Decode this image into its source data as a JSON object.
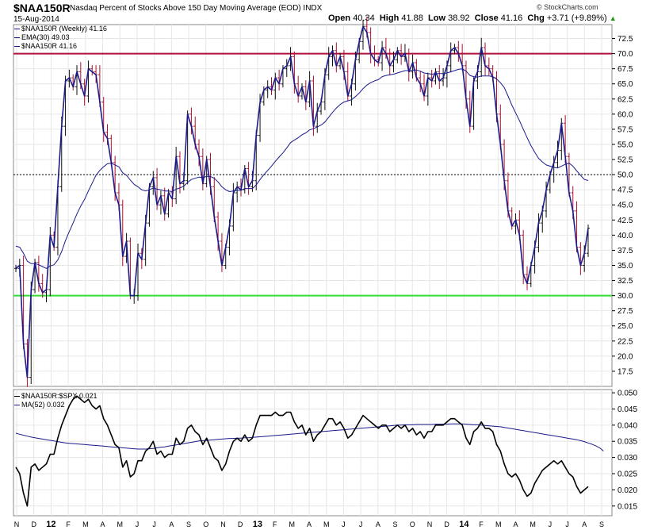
{
  "header": {
    "symbol": "$NAA150R",
    "title": "Nasdaq Percent of Stocks Above 150 Day Moving Average (EOD) INDX",
    "date": "15-Aug-2014",
    "open_label": "Open",
    "open": "40.34",
    "high_label": "High",
    "high": "41.88",
    "low_label": "Low",
    "low": "38.92",
    "close_label": "Close",
    "close": "41.16",
    "chg_label": "Chg",
    "chg": "+3.71 (+9.89%)",
    "chg_up_glyph": "▲",
    "copyright": "© StockCharts.com"
  },
  "legend_main": [
    {
      "text": "$NAA150R (Weekly) 41.16",
      "color": "#1a1a8c",
      "glyph": "candles"
    },
    {
      "text": "EMA(30) 49.03",
      "color": "#1a1a8c",
      "glyph": "line"
    },
    {
      "text": "$NAA150R 41.16",
      "color": "#1a1a8c",
      "glyph": "line"
    }
  ],
  "legend_lower": [
    {
      "text": "$NAA150R:$SPX 0.021",
      "color": "#000000",
      "glyph": "line"
    },
    {
      "text": "MA(52) 0.032",
      "color": "#1a1a8c",
      "glyph": "line"
    }
  ],
  "colors": {
    "price": "#1a1a8c",
    "ema": "#1a1a8c",
    "up_bar": "#111111",
    "down_bar": "#b01030",
    "upper_ref_line": "#b0103c",
    "lower_ref_line": "#33dd33",
    "ratio": "#000000",
    "ma": "#1a1a8c"
  },
  "chart_data": [
    {
      "type": "line",
      "panel": "main",
      "x_ticks": [
        "N",
        "D",
        "12",
        "F",
        "M",
        "A",
        "M",
        "J",
        "J",
        "A",
        "S",
        "O",
        "N",
        "D",
        "13",
        "F",
        "M",
        "A",
        "M",
        "J",
        "J",
        "A",
        "S",
        "O",
        "N",
        "D",
        "14",
        "F",
        "M",
        "A",
        "M",
        "J",
        "J",
        "A",
        "S"
      ],
      "y_ticks": [
        17.5,
        20.0,
        22.5,
        25.0,
        27.5,
        30.0,
        32.5,
        35.0,
        37.5,
        40.0,
        42.5,
        45.0,
        47.5,
        50.0,
        52.5,
        55.0,
        57.5,
        60.0,
        62.5,
        65.0,
        67.5,
        70.0,
        72.5
      ],
      "ylim": [
        15.0,
        74.8
      ],
      "reference_lines": [
        {
          "value": 70.0,
          "style": "solid",
          "color": "upper_ref_line"
        },
        {
          "value": 50.0,
          "style": "dotted",
          "color": "black"
        },
        {
          "value": 30.0,
          "style": "solid",
          "color": "lower_ref_line"
        }
      ],
      "series": [
        {
          "name": "$NAA150R",
          "values": [
            34.5,
            35.0,
            22.0,
            16.5,
            31.0,
            35.5,
            32.0,
            30.5,
            31.0,
            40.0,
            38.0,
            48.0,
            58.0,
            65.5,
            66.0,
            64.5,
            67.0,
            65.0,
            63.0,
            67.5,
            67.0,
            66.5,
            62.0,
            57.0,
            56.0,
            52.0,
            47.0,
            45.0,
            36.5,
            39.0,
            30.0,
            30.0,
            37.0,
            36.0,
            42.0,
            48.0,
            49.5,
            45.0,
            46.5,
            43.5,
            47.0,
            46.0,
            53.0,
            48.5,
            49.0,
            60.0,
            58.0,
            55.0,
            53.0,
            48.5,
            52.5,
            48.0,
            43.0,
            39.0,
            35.0,
            38.0,
            41.5,
            47.0,
            48.0,
            47.5,
            51.0,
            48.0,
            49.0,
            56.5,
            62.0,
            64.0,
            64.5,
            64.0,
            66.0,
            65.0,
            67.5,
            68.0,
            69.5,
            65.0,
            63.0,
            64.5,
            62.0,
            65.5,
            58.0,
            60.5,
            62.0,
            66.5,
            69.5,
            70.5,
            68.0,
            69.5,
            67.0,
            63.0,
            65.0,
            69.0,
            72.0,
            74.5,
            73.5,
            70.0,
            69.0,
            68.5,
            71.0,
            70.0,
            68.0,
            69.0,
            70.5,
            69.5,
            70.0,
            67.0,
            68.5,
            66.0,
            65.0,
            63.0,
            66.0,
            65.5,
            67.0,
            65.5,
            66.0,
            68.0,
            70.5,
            71.0,
            70.0,
            68.0,
            62.5,
            58.0,
            65.5,
            67.0,
            71.0,
            68.0,
            67.5,
            66.0,
            60.0,
            55.0,
            49.0,
            44.0,
            41.5,
            42.5,
            40.0,
            33.5,
            32.0,
            35.0,
            38.0,
            42.0,
            44.0,
            47.5,
            50.0,
            52.0,
            54.0,
            58.5,
            53.0,
            47.0,
            44.0,
            38.0,
            35.0,
            37.0,
            41.16
          ]
        },
        {
          "name": "EMA(30)",
          "values": [
            38.2,
            38.0,
            37.0,
            35.7,
            35.3,
            35.3,
            35.1,
            34.8,
            34.5,
            34.9,
            35.1,
            35.9,
            37.3,
            39.1,
            40.6,
            42.0,
            43.5,
            44.8,
            45.9,
            47.3,
            48.6,
            49.9,
            50.7,
            51.3,
            51.8,
            51.9,
            51.6,
            51.3,
            50.3,
            49.9,
            49.1,
            48.4,
            48.0,
            47.5,
            47.3,
            47.5,
            47.8,
            47.6,
            47.5,
            47.3,
            47.3,
            47.2,
            47.6,
            47.8,
            48.1,
            48.7,
            49.2,
            49.4,
            49.6,
            49.5,
            49.7,
            49.7,
            49.4,
            48.8,
            48.0,
            47.5,
            47.2,
            47.3,
            47.4,
            47.4,
            47.7,
            47.7,
            47.7,
            48.3,
            49.2,
            50.0,
            50.7,
            51.4,
            52.2,
            52.9,
            53.6,
            54.4,
            55.3,
            55.7,
            56.1,
            56.6,
            56.9,
            57.4,
            57.6,
            57.9,
            58.2,
            58.7,
            59.5,
            60.3,
            61.0,
            61.6,
            62.0,
            62.2,
            62.4,
            62.9,
            63.5,
            64.2,
            64.8,
            65.2,
            65.5,
            65.7,
            66.2,
            66.4,
            66.5,
            66.6,
            66.8,
            67.0,
            67.2,
            67.2,
            67.3,
            67.3,
            67.1,
            66.8,
            66.7,
            66.6,
            66.7,
            66.7,
            66.7,
            66.8,
            67.0,
            67.2,
            67.4,
            67.5,
            67.1,
            66.4,
            66.2,
            66.1,
            66.3,
            66.3,
            66.3,
            66.2,
            65.8,
            65.2,
            64.4,
            63.0,
            61.5,
            60.2,
            58.9,
            57.5,
            56.1,
            54.8,
            53.7,
            52.7,
            52.1,
            51.6,
            51.4,
            51.2,
            51.1,
            51.4,
            51.7,
            51.9,
            51.4,
            50.6,
            49.9,
            49.2,
            49.03
          ]
        }
      ],
      "bars_note": "weekly OHLC bars derived from series values"
    },
    {
      "type": "line",
      "panel": "lower",
      "x_ticks": [
        "N",
        "D",
        "12",
        "F",
        "M",
        "A",
        "M",
        "J",
        "J",
        "A",
        "S",
        "O",
        "N",
        "D",
        "13",
        "F",
        "M",
        "A",
        "M",
        "J",
        "J",
        "A",
        "S",
        "O",
        "N",
        "D",
        "14",
        "F",
        "M",
        "A",
        "M",
        "J",
        "J",
        "A",
        "S"
      ],
      "y_ticks": [
        0.015,
        0.02,
        0.025,
        0.03,
        0.035,
        0.04,
        0.045,
        0.05
      ],
      "ylim": [
        0.012,
        0.051
      ],
      "series": [
        {
          "name": "$NAA150R:$SPX",
          "values": [
            0.027,
            0.025,
            0.019,
            0.015,
            0.027,
            0.028,
            0.026,
            0.027,
            0.028,
            0.031,
            0.031,
            0.036,
            0.04,
            0.043,
            0.046,
            0.048,
            0.049,
            0.048,
            0.047,
            0.048,
            0.046,
            0.045,
            0.046,
            0.042,
            0.04,
            0.037,
            0.034,
            0.033,
            0.027,
            0.029,
            0.024,
            0.025,
            0.029,
            0.029,
            0.032,
            0.033,
            0.035,
            0.031,
            0.032,
            0.03,
            0.031,
            0.031,
            0.036,
            0.034,
            0.035,
            0.039,
            0.04,
            0.038,
            0.037,
            0.034,
            0.036,
            0.033,
            0.03,
            0.029,
            0.026,
            0.028,
            0.032,
            0.035,
            0.036,
            0.035,
            0.037,
            0.035,
            0.036,
            0.04,
            0.043,
            0.043,
            0.043,
            0.043,
            0.044,
            0.043,
            0.043,
            0.044,
            0.044,
            0.041,
            0.039,
            0.04,
            0.037,
            0.039,
            0.035,
            0.037,
            0.038,
            0.04,
            0.042,
            0.042,
            0.04,
            0.041,
            0.039,
            0.036,
            0.037,
            0.039,
            0.041,
            0.043,
            0.042,
            0.041,
            0.04,
            0.039,
            0.04,
            0.04,
            0.038,
            0.039,
            0.04,
            0.039,
            0.04,
            0.038,
            0.039,
            0.037,
            0.038,
            0.036,
            0.038,
            0.038,
            0.04,
            0.04,
            0.04,
            0.041,
            0.042,
            0.042,
            0.041,
            0.04,
            0.036,
            0.034,
            0.038,
            0.039,
            0.041,
            0.039,
            0.039,
            0.038,
            0.034,
            0.032,
            0.028,
            0.025,
            0.024,
            0.025,
            0.023,
            0.02,
            0.018,
            0.019,
            0.022,
            0.024,
            0.026,
            0.027,
            0.028,
            0.029,
            0.028,
            0.029,
            0.027,
            0.025,
            0.024,
            0.021,
            0.019,
            0.02,
            0.021
          ]
        },
        {
          "name": "MA(52)",
          "values": [
            0.0375,
            0.0372,
            0.0369,
            0.0366,
            0.0363,
            0.0361,
            0.0359,
            0.0357,
            0.0355,
            0.0353,
            0.0351,
            0.0349,
            0.0347,
            0.0345,
            0.0344,
            0.0343,
            0.0342,
            0.0341,
            0.034,
            0.0339,
            0.0338,
            0.0337,
            0.0336,
            0.0335,
            0.0334,
            0.0333,
            0.0332,
            0.0331,
            0.033,
            0.0329,
            0.0328,
            0.0327,
            0.0326,
            0.0326,
            0.0326,
            0.0327,
            0.0328,
            0.033,
            0.0332,
            0.0333,
            0.0335,
            0.0337,
            0.0339,
            0.0341,
            0.0343,
            0.0345,
            0.0347,
            0.0349,
            0.0351,
            0.0352,
            0.0353,
            0.0354,
            0.0355,
            0.0356,
            0.0357,
            0.0358,
            0.0359,
            0.0359,
            0.036,
            0.036,
            0.0361,
            0.0361,
            0.0362,
            0.0363,
            0.0364,
            0.0365,
            0.0366,
            0.0367,
            0.0368,
            0.0369,
            0.037,
            0.0371,
            0.0372,
            0.0373,
            0.0374,
            0.0375,
            0.0376,
            0.0377,
            0.0378,
            0.0379,
            0.038,
            0.0381,
            0.0382,
            0.0383,
            0.0384,
            0.0385,
            0.0386,
            0.0387,
            0.0388,
            0.0389,
            0.039,
            0.0391,
            0.0392,
            0.0393,
            0.0394,
            0.0395,
            0.0396,
            0.0397,
            0.0398,
            0.0399,
            0.04,
            0.04,
            0.0401,
            0.0401,
            0.0401,
            0.0402,
            0.0402,
            0.0402,
            0.0402,
            0.0402,
            0.0403,
            0.0403,
            0.0403,
            0.0403,
            0.0404,
            0.0404,
            0.0404,
            0.0404,
            0.0403,
            0.0402,
            0.0401,
            0.0401,
            0.04,
            0.0399,
            0.0398,
            0.0397,
            0.0396,
            0.0395,
            0.0393,
            0.0391,
            0.0389,
            0.0387,
            0.0385,
            0.0383,
            0.0381,
            0.0379,
            0.0377,
            0.0375,
            0.0373,
            0.0371,
            0.0369,
            0.0367,
            0.0365,
            0.0363,
            0.0361,
            0.0359,
            0.0357,
            0.0355,
            0.0352,
            0.0349,
            0.0345,
            0.0341,
            0.0336,
            0.033,
            0.032
          ]
        }
      ]
    }
  ]
}
